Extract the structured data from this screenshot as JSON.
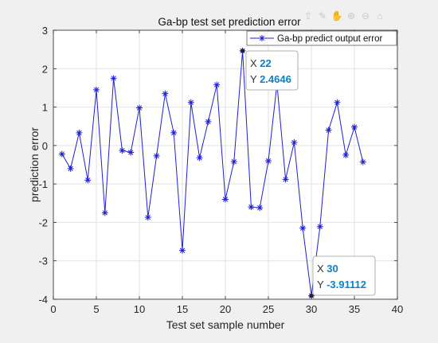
{
  "chart_data": {
    "type": "line",
    "title": "Ga-bp test set prediction error",
    "xlabel": "Test set sample number",
    "ylabel": "prediction error",
    "xlim": [
      0,
      40
    ],
    "ylim": [
      -4,
      3
    ],
    "xticks": [
      0,
      5,
      10,
      15,
      20,
      25,
      30,
      35,
      40
    ],
    "yticks": [
      -4,
      -3,
      -2,
      -1,
      0,
      1,
      2,
      3
    ],
    "grid": true,
    "legend": {
      "position": "top-right",
      "entries": [
        "Ga-bp predict output error"
      ]
    },
    "series": [
      {
        "name": "Ga-bp predict output error",
        "color": "#1f1fd6",
        "marker": "asterisk",
        "x": [
          1,
          2,
          3,
          4,
          5,
          6,
          7,
          8,
          9,
          10,
          11,
          12,
          13,
          14,
          15,
          16,
          17,
          18,
          19,
          20,
          21,
          22,
          23,
          24,
          25,
          26,
          27,
          28,
          29,
          30,
          31,
          32,
          33,
          34,
          35,
          36
        ],
        "y": [
          -0.22,
          -0.6,
          0.33,
          -0.9,
          1.45,
          -1.75,
          1.75,
          -0.13,
          -0.18,
          0.98,
          -1.87,
          -0.27,
          1.35,
          0.33,
          -2.73,
          1.12,
          -0.32,
          0.62,
          1.58,
          -1.4,
          -0.42,
          2.4646,
          -1.6,
          -1.62,
          -0.4,
          1.6,
          -0.88,
          0.08,
          -2.15,
          -3.91112,
          -2.11,
          0.4,
          1.12,
          -0.25,
          0.48,
          -0.43
        ]
      }
    ],
    "datatips": [
      {
        "x_label": "X",
        "x_value": "22",
        "y_label": "Y",
        "y_value": "2.4646",
        "x": 22,
        "y": 2.4646
      },
      {
        "x_label": "X",
        "x_value": "30",
        "y_label": "Y",
        "y_value": "-3.91112",
        "x": 30,
        "y": -3.91112
      }
    ]
  },
  "toolbar": {
    "icons": [
      "export-icon",
      "brush-icon",
      "pan-icon",
      "zoom-in-icon",
      "zoom-out-icon",
      "home-icon"
    ]
  }
}
